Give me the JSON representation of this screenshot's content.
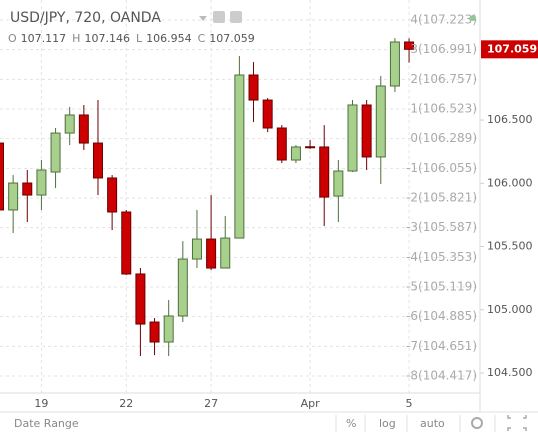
{
  "chart_data": {
    "type": "candlestick",
    "title": "USD/JPY, 720, OANDA",
    "ohlc_labels": [
      "O",
      "H",
      "L",
      "C"
    ],
    "categories": [
      null,
      null,
      null,
      "19",
      null,
      null,
      null,
      null,
      null,
      "22",
      null,
      null,
      null,
      null,
      null,
      "27",
      null,
      null,
      null,
      null,
      null,
      null,
      "Apr",
      null,
      null,
      null,
      null,
      null,
      null,
      "5"
    ],
    "open": [
      106.318,
      105.789,
      106.002,
      105.907,
      106.089,
      106.397,
      106.54,
      106.318,
      106.042,
      105.773,
      105.283,
      104.903,
      104.745,
      104.951,
      105.401,
      105.559,
      105.33,
      105.567,
      106.856,
      106.658,
      106.437,
      106.184,
      106.289,
      106.287,
      105.899,
      106.097,
      106.619,
      106.208,
      106.769,
      107.117
    ],
    "high": [
      106.342,
      106.065,
      106.105,
      106.184,
      106.437,
      106.603,
      106.619,
      106.658,
      106.065,
      105.789,
      105.33,
      104.935,
      105.077,
      105.543,
      105.789,
      105.907,
      105.741,
      107.006,
      106.958,
      106.674,
      106.46,
      106.302,
      106.342,
      106.46,
      106.184,
      106.658,
      106.658,
      106.848,
      107.148,
      107.146
    ],
    "low": [
      105.773,
      105.607,
      105.694,
      105.789,
      105.962,
      106.302,
      106.263,
      105.907,
      105.63,
      105.275,
      104.634,
      104.642,
      104.634,
      104.903,
      105.33,
      105.314,
      105.33,
      105.567,
      106.484,
      106.405,
      106.16,
      106.16,
      106.271,
      105.662,
      105.694,
      106.089,
      106.105,
      105.994,
      106.721,
      106.954
    ],
    "close": [
      105.789,
      106.002,
      105.907,
      106.105,
      106.397,
      106.54,
      106.318,
      106.042,
      105.773,
      105.283,
      104.887,
      104.745,
      104.951,
      105.401,
      105.559,
      105.33,
      105.567,
      106.856,
      106.658,
      106.437,
      106.184,
      106.287,
      106.287,
      105.891,
      106.097,
      106.619,
      106.208,
      106.769,
      107.117,
      107.059
    ],
    "up_color": "#a8d08d",
    "down_color": "#cc0000",
    "ylim": [
      104.342,
      107.449
    ],
    "yticks": [
      {
        "value": 106.5,
        "label": "106.500"
      },
      {
        "value": 106,
        "label": "106.000"
      },
      {
        "value": 105.5,
        "label": "105.500"
      },
      {
        "value": 105,
        "label": "105.000"
      },
      {
        "value": 104.5,
        "label": "104.500"
      }
    ],
    "y2lim": [
      -8.573,
      4.674
    ],
    "y2ticks": [
      {
        "value": 4,
        "label": "4(107.223)"
      },
      {
        "value": 3,
        "label": "3(106.991)"
      },
      {
        "value": 2,
        "label": "2(106.757)"
      },
      {
        "value": 1,
        "label": "1(106.523)"
      },
      {
        "value": 0,
        "label": "0(106.289)"
      },
      {
        "value": -1,
        "label": "-1(106.055)"
      },
      {
        "value": -2,
        "label": "-2(105.821)"
      },
      {
        "value": -3,
        "label": "-3(105.587)"
      },
      {
        "value": -4,
        "label": "-4(105.353)"
      },
      {
        "value": -5,
        "label": "-5(105.119)"
      },
      {
        "value": -6,
        "label": "-6(104.885)"
      },
      {
        "value": -7,
        "label": "-7(104.651)"
      },
      {
        "value": -8,
        "label": "-8(104.417)"
      }
    ],
    "grid": true
  },
  "toolbar": {
    "date_range": "Date Range",
    "percent": "%",
    "log": "log",
    "auto": "auto"
  }
}
